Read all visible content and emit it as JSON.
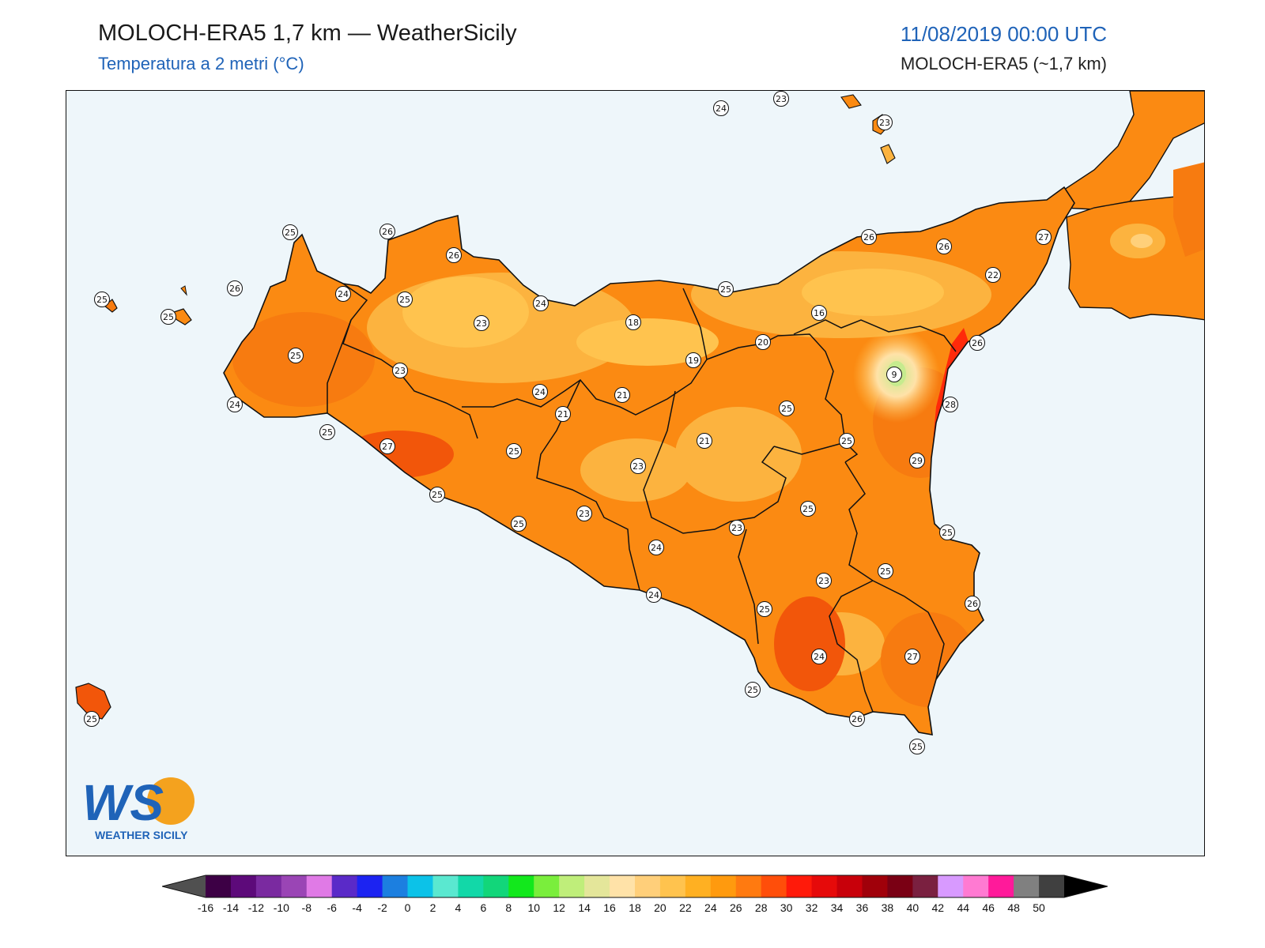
{
  "header": {
    "title": "MOLOCH-ERA5 1,7 km — WeatherSicily",
    "subtitle": "Temperatura a 2 metri (°C)",
    "date": "11/08/2019 00:00 UTC",
    "model": "MOLOCH-ERA5 (~1,7 km)"
  },
  "logo": {
    "mark": "WS",
    "text": "WEATHER SICILY"
  },
  "colors": {
    "sea": "#eef6fa",
    "land_base": "#fb8a12",
    "land_warm": "#f77b10",
    "land_cool": "#fcb33f",
    "land_cooler": "#ffd07a",
    "hot_coast": "#f2560a",
    "hottest": "#ff2a0a",
    "etna": "#c6eb8e",
    "boundary": "#111111"
  },
  "colorbar": {
    "ticks": [
      "-16",
      "-14",
      "-12",
      "-10",
      "-8",
      "-6",
      "-4",
      "-2",
      "0",
      "2",
      "4",
      "6",
      "8",
      "10",
      "12",
      "14",
      "16",
      "18",
      "20",
      "22",
      "24",
      "26",
      "28",
      "30",
      "32",
      "34",
      "36",
      "38",
      "40",
      "42",
      "44",
      "46",
      "48",
      "50"
    ],
    "swatches": [
      "#3d0045",
      "#5d0a7a",
      "#7a2aa0",
      "#9a45b5",
      "#e07ae6",
      "#5a2ac8",
      "#1c23f2",
      "#1c7fe0",
      "#0cc2e8",
      "#5ae8d0",
      "#12d8a8",
      "#12d67a",
      "#12e81c",
      "#7aee3c",
      "#bfee7a",
      "#e4e69a",
      "#ffe2a8",
      "#ffcf7a",
      "#ffc34e",
      "#ffb022",
      "#ff9a0e",
      "#ff7a10",
      "#ff4e0a",
      "#ff1a0a",
      "#e60a0a",
      "#c8000a",
      "#a0000a",
      "#7a0014",
      "#7a2040",
      "#d89aff",
      "#ff7ad2",
      "#ff1a9a",
      "#808080",
      "#404040"
    ]
  },
  "stations": [
    {
      "value": "24"
    },
    {
      "value": "23"
    },
    {
      "value": "23"
    },
    {
      "value": "25"
    },
    {
      "value": "26"
    },
    {
      "value": "26"
    },
    {
      "value": "26"
    },
    {
      "value": "25"
    },
    {
      "value": "24"
    },
    {
      "value": "25"
    },
    {
      "value": "25"
    },
    {
      "value": "24"
    },
    {
      "value": "23"
    },
    {
      "value": "24"
    },
    {
      "value": "18"
    },
    {
      "value": "25"
    },
    {
      "value": "16"
    },
    {
      "value": "26"
    },
    {
      "value": "26"
    },
    {
      "value": "27"
    },
    {
      "value": "22"
    },
    {
      "value": "25"
    },
    {
      "value": "23"
    },
    {
      "value": "19"
    },
    {
      "value": "20"
    },
    {
      "value": "26"
    },
    {
      "value": "9"
    },
    {
      "value": "24"
    },
    {
      "value": "21"
    },
    {
      "value": "21"
    },
    {
      "value": "25"
    },
    {
      "value": "28"
    },
    {
      "value": "25"
    },
    {
      "value": "27"
    },
    {
      "value": "25"
    },
    {
      "value": "21"
    },
    {
      "value": "25"
    },
    {
      "value": "29"
    },
    {
      "value": "23"
    },
    {
      "value": "25"
    },
    {
      "value": "25"
    },
    {
      "value": "23"
    },
    {
      "value": "23"
    },
    {
      "value": "25"
    },
    {
      "value": "24"
    },
    {
      "value": "25"
    },
    {
      "value": "23"
    },
    {
      "value": "24"
    },
    {
      "value": "25"
    },
    {
      "value": "25"
    },
    {
      "value": "26"
    },
    {
      "value": "27"
    },
    {
      "value": "24"
    },
    {
      "value": "25"
    },
    {
      "value": "26"
    },
    {
      "value": "25"
    },
    {
      "value": "25"
    }
  ]
}
